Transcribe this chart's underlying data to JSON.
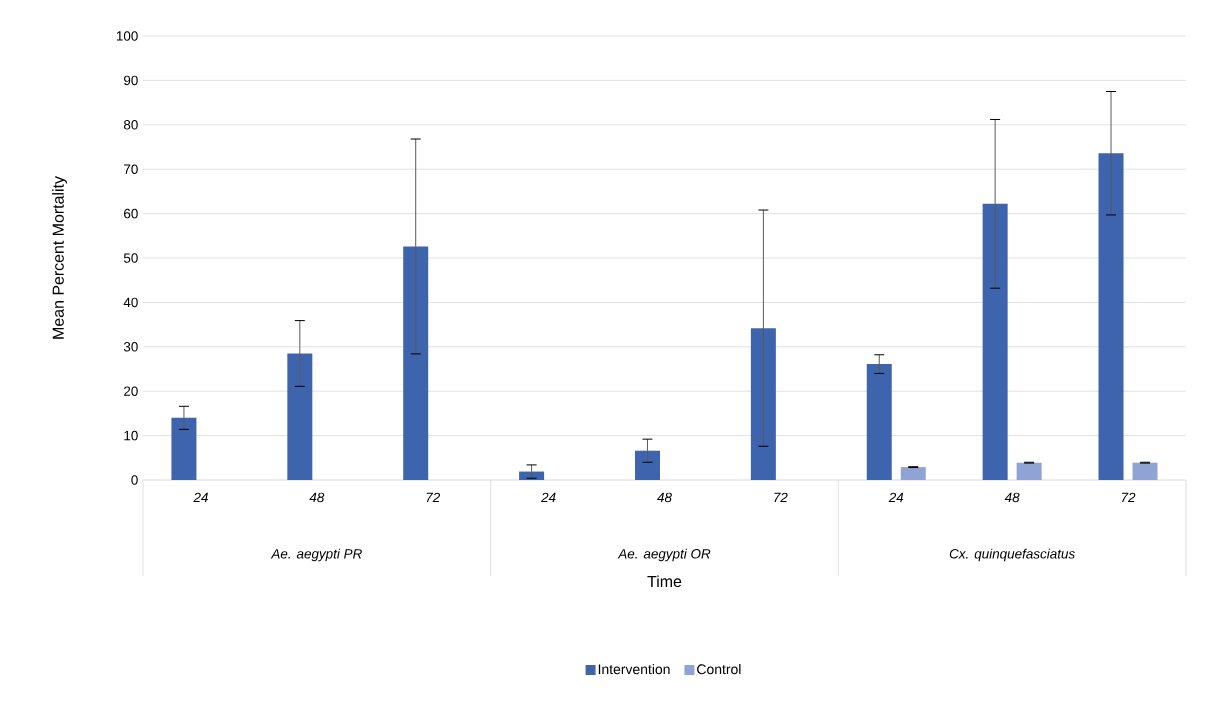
{
  "chart_data": {
    "type": "bar",
    "xlabel": "Time",
    "ylabel": "Mean Percent Mortality",
    "categories": [
      "24",
      "48",
      "72",
      "24",
      "48",
      "72",
      "24",
      "48",
      "72"
    ],
    "annotations": [
      "Ae. aegypti PR",
      "Ae. aegypti OR",
      "Cx. quinquefasciatus"
    ],
    "series": [
      {
        "name": "Intervention",
        "color": "#3d64ac",
        "values": [
          14,
          28.5,
          52.6,
          1.9,
          6.6,
          34.2,
          26.1,
          62.2,
          73.6
        ],
        "errors": [
          2.6,
          7.4,
          24.2,
          1.5,
          2.6,
          26.6,
          2.1,
          19,
          13.9
        ]
      },
      {
        "name": "Control",
        "color": "#8fa4d4",
        "values": [
          null,
          null,
          null,
          null,
          null,
          null,
          2.9,
          3.9,
          3.9
        ],
        "errors": [
          null,
          null,
          null,
          null,
          null,
          null,
          0.1,
          0.1,
          0.1
        ]
      }
    ],
    "ylim": [
      0,
      100
    ],
    "yticks": [
      0,
      10,
      20,
      30,
      40,
      50,
      60,
      70,
      80,
      90,
      100
    ],
    "grid": "y",
    "legend": "bottom"
  }
}
